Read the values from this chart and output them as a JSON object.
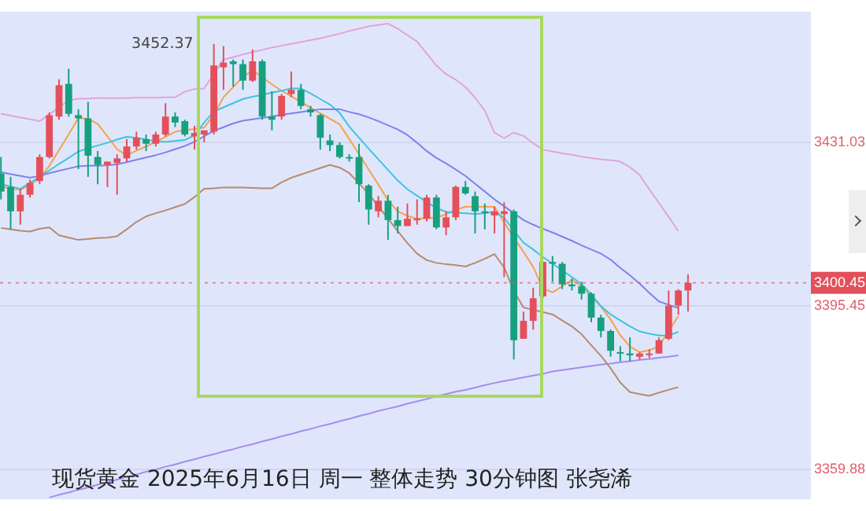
{
  "chart_data": {
    "type": "candlestick",
    "title": "现货黄金 2025年6月16日 周一 整体走势 30分钟图 张尧浠",
    "categories": [
      null,
      null,
      null,
      null,
      null,
      null,
      null,
      null,
      null,
      null,
      null,
      null,
      null,
      null,
      null,
      null,
      null,
      null,
      null,
      null,
      null,
      null,
      null,
      null,
      null,
      null,
      null,
      null,
      null,
      null,
      null,
      null,
      null,
      null,
      null,
      null,
      null,
      null,
      null,
      null,
      null,
      null,
      null,
      null,
      null,
      null,
      null,
      null,
      null,
      null,
      null,
      null,
      null,
      null,
      null,
      null,
      null,
      null,
      null,
      null,
      null,
      null,
      null,
      null,
      null,
      null,
      null,
      null,
      null,
      null,
      null,
      null
    ],
    "ohlc": [
      [
        3424.2,
        3427.8,
        3418.6,
        3420.3
      ],
      [
        3421.3,
        3423.5,
        3412.1,
        3416.0
      ],
      [
        3416.0,
        3420.9,
        3413.1,
        3419.6
      ],
      [
        3419.6,
        3422.9,
        3419.0,
        3422.2
      ],
      [
        3422.6,
        3428.4,
        3421.9,
        3427.8
      ],
      [
        3427.8,
        3437.5,
        3427.5,
        3436.9
      ],
      [
        3436.6,
        3444.7,
        3435.9,
        3443.4
      ],
      [
        3443.7,
        3447.0,
        3436.6,
        3437.2
      ],
      [
        3436.9,
        3438.2,
        3425.2,
        3436.2
      ],
      [
        3436.2,
        3439.8,
        3423.5,
        3428.1
      ],
      [
        3427.8,
        3429.1,
        3421.9,
        3426.1
      ],
      [
        3426.1,
        3426.8,
        3421.3,
        3426.8
      ],
      [
        3426.5,
        3428.4,
        3419.6,
        3427.5
      ],
      [
        3427.5,
        3431.7,
        3426.8,
        3430.1
      ],
      [
        3430.1,
        3433.3,
        3429.4,
        3432.0
      ],
      [
        3431.7,
        3432.7,
        3429.1,
        3430.7
      ],
      [
        3430.7,
        3433.3,
        3430.1,
        3432.7
      ],
      [
        3432.7,
        3439.5,
        3432.3,
        3436.6
      ],
      [
        3436.6,
        3437.5,
        3434.3,
        3435.3
      ],
      [
        3435.6,
        3435.9,
        3432.3,
        3432.7
      ],
      [
        3432.3,
        3434.6,
        3429.4,
        3433.0
      ],
      [
        3432.7,
        3433.6,
        3431.0,
        3433.6
      ],
      [
        3433.3,
        3452.37,
        3432.7,
        3447.7
      ],
      [
        3447.3,
        3451.9,
        3442.4,
        3448.3
      ],
      [
        3448.6,
        3449.0,
        3443.1,
        3448.0
      ],
      [
        3448.0,
        3449.0,
        3442.4,
        3444.4
      ],
      [
        3444.4,
        3451.2,
        3444.1,
        3448.6
      ],
      [
        3448.6,
        3449.0,
        3435.9,
        3436.6
      ],
      [
        3436.6,
        3442.1,
        3433.6,
        3435.9
      ],
      [
        3436.6,
        3441.5,
        3435.9,
        3441.1
      ],
      [
        3441.5,
        3446.4,
        3440.8,
        3442.4
      ],
      [
        3442.4,
        3443.7,
        3438.2,
        3438.9
      ],
      [
        3438.2,
        3438.9,
        3436.6,
        3437.5
      ],
      [
        3436.9,
        3437.2,
        3429.4,
        3432.0
      ],
      [
        3431.4,
        3432.7,
        3429.1,
        3430.4
      ],
      [
        3430.4,
        3431.0,
        3427.5,
        3427.8
      ],
      [
        3427.8,
        3428.4,
        3426.8,
        3427.6
      ],
      [
        3427.8,
        3430.7,
        3418.0,
        3421.9
      ],
      [
        3421.6,
        3421.9,
        3413.1,
        3416.4
      ],
      [
        3416.0,
        3419.3,
        3414.7,
        3418.3
      ],
      [
        3418.3,
        3419.6,
        3409.8,
        3414.1
      ],
      [
        3414.1,
        3417.0,
        3411.2,
        3412.8
      ],
      [
        3412.8,
        3417.7,
        3412.8,
        3414.4
      ],
      [
        3414.1,
        3418.6,
        3413.1,
        3414.4
      ],
      [
        3414.4,
        3419.6,
        3413.8,
        3419.0
      ],
      [
        3419.0,
        3419.6,
        3412.1,
        3412.5
      ],
      [
        3412.5,
        3416.0,
        3410.8,
        3414.7
      ],
      [
        3414.7,
        3421.6,
        3414.1,
        3421.3
      ],
      [
        3421.3,
        3422.6,
        3419.6,
        3419.9
      ],
      [
        3419.3,
        3420.3,
        3411.2,
        3416.0
      ],
      [
        3416.0,
        3417.7,
        3412.1,
        3415.9
      ],
      [
        3415.1,
        3417.0,
        3411.2,
        3416.0
      ],
      [
        3415.4,
        3418.0,
        3401.7,
        3416.0
      ],
      [
        3416.0,
        3416.4,
        3383.8,
        3388.0
      ],
      [
        3388.3,
        3394.2,
        3388.3,
        3392.2
      ],
      [
        3392.2,
        3399.4,
        3390.3,
        3397.1
      ],
      [
        3397.5,
        3405.0,
        3397.1,
        3405.0
      ],
      [
        3405.0,
        3406.3,
        3400.7,
        3404.6
      ],
      [
        3404.6,
        3405.0,
        3399.1,
        3400.1
      ],
      [
        3400.1,
        3401.4,
        3398.8,
        3399.7
      ],
      [
        3399.7,
        3400.7,
        3396.8,
        3398.1
      ],
      [
        3398.1,
        3398.4,
        3391.9,
        3392.9
      ],
      [
        3392.9,
        3393.5,
        3388.6,
        3390.0
      ],
      [
        3390.0,
        3390.3,
        3384.4,
        3385.7
      ],
      [
        3385.4,
        3386.7,
        3383.4,
        3385.1
      ],
      [
        3385.1,
        3388.6,
        3383.4,
        3384.7
      ],
      [
        3384.4,
        3385.4,
        3383.8,
        3385.1
      ],
      [
        3384.9,
        3386.0,
        3384.1,
        3385.1
      ],
      [
        3385.1,
        3388.6,
        3385.1,
        3388.0
      ],
      [
        3388.3,
        3398.8,
        3388.0,
        3395.5
      ],
      [
        3395.5,
        3399.1,
        3393.5,
        3398.8
      ],
      [
        3398.8,
        3402.3,
        3394.2,
        3400.45
      ]
    ],
    "series": [
      {
        "type": "line",
        "color": "#e4a2de",
        "values": [
          3437.2,
          3436.8,
          3436.4,
          3436.0,
          3435.6,
          3437.1,
          3438.6,
          3440.1,
          3440.5,
          3440.5,
          3440.6,
          3440.6,
          3440.6,
          3440.6,
          3440.7,
          3440.7,
          3440.7,
          3440.8,
          3440.8,
          3442.0,
          3442.6,
          3442.7,
          3445.9,
          3449.0,
          3449.5,
          3450.1,
          3450.6,
          3451.1,
          3451.6,
          3452.0,
          3452.4,
          3452.8,
          3453.2,
          3453.6,
          3454.1,
          3454.6,
          3455.2,
          3455.7,
          3456.2,
          3456.5,
          3456.8,
          3455.7,
          3454.3,
          3452.9,
          3450.3,
          3447.7,
          3445.8,
          3444.6,
          3443.0,
          3440.7,
          3437.9,
          3433.1,
          3431.9,
          3433.1,
          3432.4,
          3430.8,
          3429.4,
          3429.0,
          3428.6,
          3428.3,
          3427.9,
          3427.6,
          3427.3,
          3427.1,
          3426.8,
          3425.6,
          3423.9,
          3420.8,
          3417.8,
          3414.8,
          3411.7,
          null
        ]
      },
      {
        "type": "line",
        "color": "#b88a6c",
        "values": [
          3412.4,
          3412.1,
          3411.8,
          3411.6,
          3412.2,
          3412.5,
          3410.8,
          3410.3,
          3409.8,
          3410.0,
          3410.2,
          3410.3,
          3410.6,
          3412.1,
          3413.7,
          3414.9,
          3415.6,
          3416.2,
          3416.9,
          3417.6,
          3419.1,
          3420.9,
          3421.0,
          3421.2,
          3421.2,
          3421.2,
          3421.1,
          3421.0,
          3421.0,
          3422.3,
          3423.3,
          3424.0,
          3424.7,
          3425.4,
          3426.1,
          3425.5,
          3424.3,
          3422.1,
          3419.8,
          3417.1,
          3414.4,
          3411.7,
          3409.1,
          3406.8,
          3405.4,
          3404.8,
          3404.5,
          3404.3,
          3404.0,
          3404.8,
          3405.7,
          3406.7,
          3403.8,
          3398.7,
          3395.1,
          3394.6,
          3394.1,
          3393.6,
          3392.3,
          3391.0,
          3389.3,
          3386.9,
          3384.6,
          3381.9,
          3378.8,
          3376.7,
          3376.3,
          3375.9,
          3376.6,
          3377.2,
          3377.8,
          null
        ]
      },
      {
        "type": "line",
        "color": "#7c83ee",
        "values": [
          3424.5,
          3424.1,
          3423.7,
          3423.3,
          3423.7,
          3424.3,
          3424.8,
          3425.3,
          3425.8,
          3425.9,
          3425.9,
          3426.0,
          3426.2,
          3426.7,
          3427.2,
          3427.7,
          3428.2,
          3428.8,
          3429.5,
          3430.2,
          3431.1,
          3432.3,
          3433.5,
          3434.3,
          3435.1,
          3435.7,
          3436.0,
          3436.3,
          3436.6,
          3437.0,
          3437.3,
          3437.6,
          3437.9,
          3438.2,
          3438.2,
          3438.2,
          3437.6,
          3437.1,
          3436.4,
          3435.6,
          3434.7,
          3433.8,
          3432.6,
          3430.9,
          3429.1,
          3427.6,
          3426.4,
          3425.1,
          3423.7,
          3422.0,
          3420.3,
          3418.6,
          3417.1,
          3415.6,
          3414.1,
          3413.1,
          3412.2,
          3411.4,
          3410.5,
          3409.6,
          3408.6,
          3407.7,
          3406.8,
          3405.5,
          3403.7,
          3402.1,
          3400.3,
          3398.3,
          3396.4,
          3395.7,
          3395.0,
          null
        ]
      },
      {
        "type": "line",
        "color": "#3ec4de",
        "values": [
          3421.9,
          3421.4,
          3420.9,
          3422.2,
          3423.5,
          3424.9,
          3426.3,
          3427.6,
          3429.0,
          3429.7,
          3430.3,
          3430.9,
          3431.6,
          3432.2,
          3432.0,
          3431.6,
          3431.2,
          3431.1,
          3431.3,
          3431.5,
          3432.5,
          3435.3,
          3437.7,
          3438.6,
          3439.5,
          3440.4,
          3440.9,
          3441.3,
          3441.8,
          3442.2,
          3442.7,
          3442.7,
          3441.6,
          3440.4,
          3439.2,
          3437.4,
          3434.4,
          3432.0,
          3429.6,
          3427.3,
          3425.0,
          3422.7,
          3420.8,
          3419.4,
          3418.0,
          3416.7,
          3415.9,
          3415.7,
          3415.6,
          3415.4,
          3415.6,
          3415.9,
          3414.6,
          3411.8,
          3409.2,
          3407.7,
          3406.1,
          3404.6,
          3403.2,
          3401.7,
          3400.2,
          3397.9,
          3395.4,
          3393.6,
          3392.3,
          3391.0,
          3389.9,
          3389.4,
          3389.0,
          3389.0,
          3389.8,
          null
        ]
      },
      {
        "type": "line",
        "color": "#f5a24c",
        "values": [
          3421.3,
          3421.0,
          3420.6,
          3421.9,
          3423.1,
          3425.9,
          3429.3,
          3432.7,
          3436.3,
          3436.1,
          3435.0,
          3432.3,
          3429.5,
          3428.2,
          3429.2,
          3430.1,
          3431.1,
          3432.2,
          3433.3,
          3433.6,
          3433.9,
          3434.2,
          3437.0,
          3440.8,
          3443.0,
          3445.2,
          3446.7,
          3445.1,
          3443.6,
          3442.2,
          3441.0,
          3439.8,
          3438.5,
          3437.3,
          3436.1,
          3434.9,
          3431.7,
          3428.4,
          3425.1,
          3421.8,
          3418.4,
          3416.0,
          3415.0,
          3414.4,
          3414.5,
          3414.6,
          3415.4,
          3416.3,
          3417.0,
          3417.0,
          3417.0,
          3417.0,
          3413.6,
          3410.3,
          3407.2,
          3403.9,
          3399.3,
          3398.4,
          3399.7,
          3401.1,
          3399.7,
          3397.5,
          3395.3,
          3392.5,
          3389.1,
          3386.6,
          3385.4,
          3385.8,
          3386.7,
          3390.0,
          3393.2,
          null
        ]
      },
      {
        "type": "line",
        "color": "#a48cf0",
        "values": [
          null,
          null,
          null,
          null,
          null,
          3353.8,
          3354.4,
          3354.9,
          3355.5,
          3356.0,
          3356.6,
          3357.1,
          3357.7,
          3358.3,
          3358.8,
          3359.4,
          3359.9,
          3360.5,
          3361.0,
          3361.6,
          3362.1,
          3362.7,
          3363.2,
          3363.8,
          3364.3,
          3364.9,
          3365.4,
          3366.0,
          3366.5,
          3367.1,
          3367.6,
          3368.2,
          3368.7,
          3369.3,
          3369.8,
          3370.4,
          3370.9,
          3371.5,
          3372.0,
          3372.6,
          3373.1,
          3373.6,
          3374.2,
          3374.7,
          3375.2,
          3375.8,
          3376.3,
          3376.8,
          3377.2,
          3377.7,
          3378.2,
          3378.7,
          3379.1,
          3379.5,
          3379.9,
          3380.3,
          3380.7,
          3381.2,
          3381.5,
          3381.8,
          3382.1,
          3382.4,
          3382.7,
          3382.9,
          3383.2,
          3383.4,
          3383.7,
          3383.9,
          3384.2,
          3384.4,
          3384.7,
          null
        ]
      }
    ],
    "ylim": [
      3353.4,
      3459.4
    ],
    "yticks": [
      3431.03,
      3395.45,
      3359.88
    ],
    "grid": "y",
    "tick_labels": "y",
    "legend": false,
    "annotations": [
      "3452.37"
    ],
    "ref_lines": [
      {
        "axis": "y",
        "value": 3400.45,
        "label": "3400.45",
        "color": "#e3505c",
        "line_style": "dotted"
      }
    ]
  }
}
